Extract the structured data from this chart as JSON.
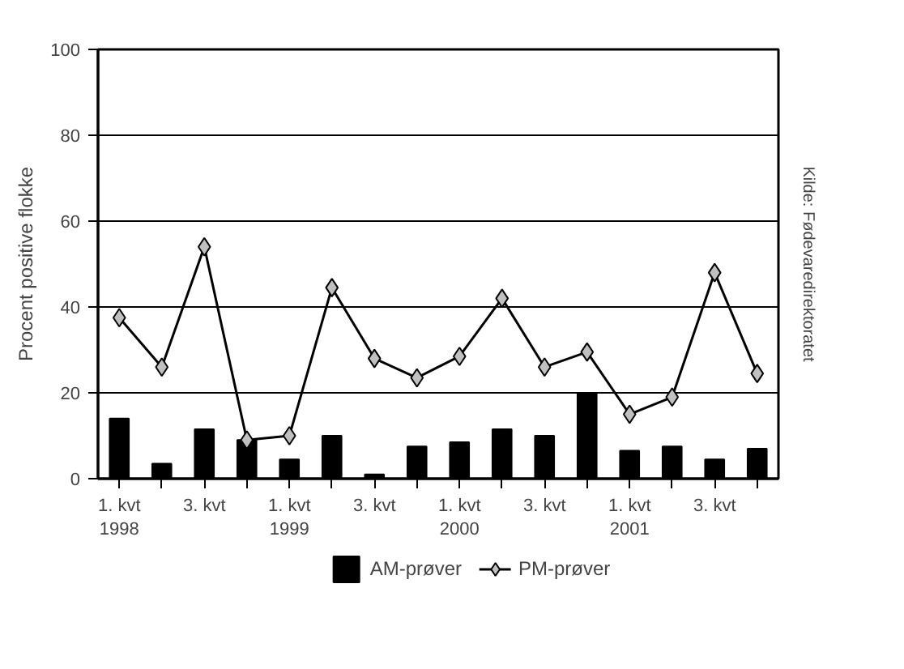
{
  "chart_data": {
    "type": "bar",
    "ylabel": "Procent positive flokke",
    "categories": [
      "1. kvt\n1998",
      null,
      "3. kvt",
      null,
      "1. kvt\n1999",
      null,
      "3. kvt",
      null,
      "1. kvt\n2000",
      null,
      "3. kvt",
      null,
      "1. kvt\n2001",
      null,
      "3. kvt",
      null
    ],
    "series": [
      {
        "name": "AM-prøver",
        "color": "#000000",
        "values": [
          14,
          3.5,
          11.5,
          9,
          4.5,
          10,
          1,
          7.5,
          8.5,
          11.5,
          10,
          20,
          6.5,
          7.5,
          4.5,
          7
        ]
      },
      {
        "name": "PM-prøver",
        "type": "line",
        "color": "#000000",
        "marker": "diamond",
        "values": [
          37.5,
          26,
          54,
          9,
          10,
          44.5,
          28,
          23.5,
          28.5,
          42,
          26,
          29.5,
          15,
          19,
          48,
          24.5
        ]
      }
    ],
    "ylim": [
      0,
      100
    ],
    "yticks": [
      0,
      20,
      40,
      60,
      80,
      100
    ],
    "grid": "y",
    "legend": "bottom",
    "annotations": [
      "Kilde: Fødevaredirektoratet"
    ]
  }
}
